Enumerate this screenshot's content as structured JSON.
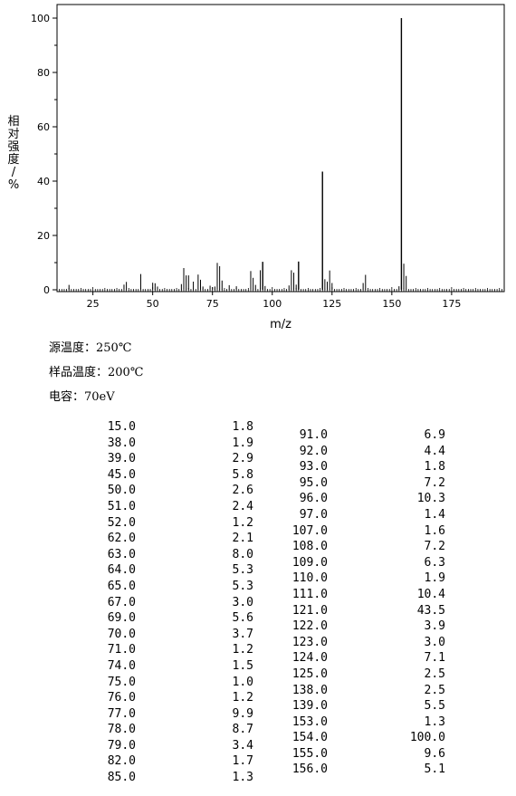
{
  "chart_data": {
    "type": "bar",
    "title": "",
    "xlabel": "m/z",
    "ylabel": "相对强度/%",
    "xlim": [
      10,
      197
    ],
    "ylim": [
      0,
      105
    ],
    "x_ticks": [
      25,
      50,
      75,
      100,
      125,
      150,
      175
    ],
    "y_ticks": [
      0,
      20,
      40,
      60,
      80,
      100
    ],
    "grid": false,
    "peaks": [
      {
        "mz": "15.0",
        "abundance": "1.8"
      },
      {
        "mz": "38.0",
        "abundance": "1.9"
      },
      {
        "mz": "39.0",
        "abundance": "2.9"
      },
      {
        "mz": "45.0",
        "abundance": "5.8"
      },
      {
        "mz": "50.0",
        "abundance": "2.6"
      },
      {
        "mz": "51.0",
        "abundance": "2.4"
      },
      {
        "mz": "52.0",
        "abundance": "1.2"
      },
      {
        "mz": "62.0",
        "abundance": "2.1"
      },
      {
        "mz": "63.0",
        "abundance": "8.0"
      },
      {
        "mz": "64.0",
        "abundance": "5.3"
      },
      {
        "mz": "65.0",
        "abundance": "5.3"
      },
      {
        "mz": "67.0",
        "abundance": "3.0"
      },
      {
        "mz": "69.0",
        "abundance": "5.6"
      },
      {
        "mz": "70.0",
        "abundance": "3.7"
      },
      {
        "mz": "71.0",
        "abundance": "1.2"
      },
      {
        "mz": "74.0",
        "abundance": "1.5"
      },
      {
        "mz": "75.0",
        "abundance": "1.0"
      },
      {
        "mz": "76.0",
        "abundance": "1.2"
      },
      {
        "mz": "77.0",
        "abundance": "9.9"
      },
      {
        "mz": "78.0",
        "abundance": "8.7"
      },
      {
        "mz": "79.0",
        "abundance": "3.4"
      },
      {
        "mz": "82.0",
        "abundance": "1.7"
      },
      {
        "mz": "85.0",
        "abundance": "1.3"
      },
      {
        "mz": "91.0",
        "abundance": "6.9"
      },
      {
        "mz": "92.0",
        "abundance": "4.4"
      },
      {
        "mz": "93.0",
        "abundance": "1.8"
      },
      {
        "mz": "95.0",
        "abundance": "7.2"
      },
      {
        "mz": "96.0",
        "abundance": "10.3"
      },
      {
        "mz": "97.0",
        "abundance": "1.4"
      },
      {
        "mz": "107.0",
        "abundance": "1.6"
      },
      {
        "mz": "108.0",
        "abundance": "7.2"
      },
      {
        "mz": "109.0",
        "abundance": "6.3"
      },
      {
        "mz": "110.0",
        "abundance": "1.9"
      },
      {
        "mz": "111.0",
        "abundance": "10.4"
      },
      {
        "mz": "121.0",
        "abundance": "43.5"
      },
      {
        "mz": "122.0",
        "abundance": "3.9"
      },
      {
        "mz": "123.0",
        "abundance": "3.0"
      },
      {
        "mz": "124.0",
        "abundance": "7.1"
      },
      {
        "mz": "125.0",
        "abundance": "2.5"
      },
      {
        "mz": "138.0",
        "abundance": "2.5"
      },
      {
        "mz": "139.0",
        "abundance": "5.5"
      },
      {
        "mz": "153.0",
        "abundance": "1.3"
      },
      {
        "mz": "154.0",
        "abundance": "100.0"
      },
      {
        "mz": "155.0",
        "abundance": "9.6"
      },
      {
        "mz": "156.0",
        "abundance": "5.1"
      }
    ]
  },
  "conditions": [
    "源温度：250℃",
    "样品温度：200℃",
    "电容：70eV"
  ],
  "colors": {
    "axis": "#000000",
    "peak": "#000000",
    "background": "#ffffff"
  }
}
